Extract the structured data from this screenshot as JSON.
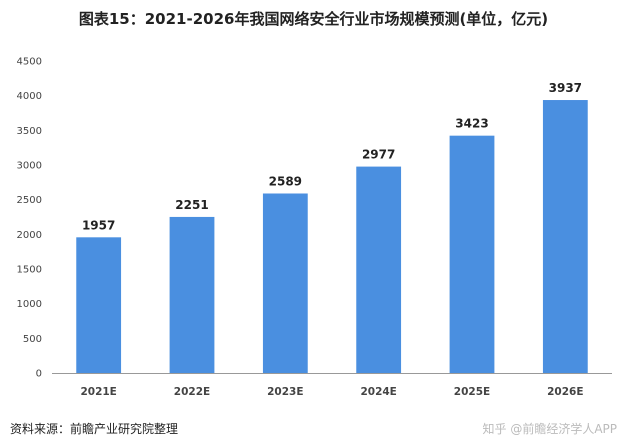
{
  "title": "图表15：2021-2026年我国网络安全行业市场规模预测(单位，亿元)",
  "source": "资料来源：前瞻产业研究院整理",
  "watermark": "知乎 @前瞻经济学人APP",
  "colors": {
    "bar": "#4A8FE0",
    "axis": "#999999"
  },
  "chart_data": {
    "type": "bar",
    "title": "图表15：2021-2026年我国网络安全行业市场规模预测(单位，亿元)",
    "categories": [
      "2021E",
      "2022E",
      "2023E",
      "2024E",
      "2025E",
      "2026E"
    ],
    "values": [
      1957,
      2251,
      2589,
      2977,
      3423,
      3937
    ],
    "xlabel": "",
    "ylabel": "",
    "ylim": [
      0,
      4500
    ],
    "yticks": [
      0,
      500,
      1000,
      1500,
      2000,
      2500,
      3000,
      3500,
      4000,
      4500
    ],
    "grid": false,
    "data_labels": true
  }
}
